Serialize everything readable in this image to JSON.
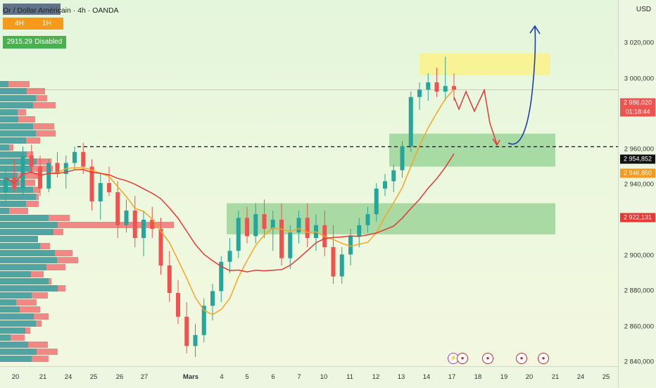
{
  "header": {
    "title": "Or / Dollar Américain · 4h · OANDA",
    "row1_left": "4H",
    "row1_right": "1H",
    "row2_value": "2915.29",
    "row2_status": "Disabled"
  },
  "price_axis": {
    "currency": "USD",
    "ticks": [
      "3 020,000",
      "3 000,000",
      "2 960,000",
      "2 940,000",
      "2 900,000",
      "2 880,000",
      "2 860,000",
      "2 840,000"
    ],
    "labels": {
      "current_price": "2 986,020",
      "countdown": "01:18:44",
      "dashed_level": "2 954,852",
      "ma_fast": "2 946,850",
      "ma_slow": "2 922,131"
    }
  },
  "time_axis": {
    "ticks": [
      "20",
      "21",
      "24",
      "25",
      "26",
      "27",
      "Mars",
      "4",
      "5",
      "6",
      "7",
      "10",
      "11",
      "12",
      "13",
      "14",
      "17",
      "18",
      "19",
      "20",
      "21",
      "24",
      "25"
    ]
  },
  "colors": {
    "up": "#26a69a",
    "down": "#ef5350",
    "ma_fast": "#f5a623",
    "ma_slow": "#e53935",
    "zone_green": "#66bb6a",
    "zone_yellow": "#fff176",
    "projection_red": "#e53935",
    "projection_blue": "#1e40af"
  },
  "events": [
    {
      "icon": "lightning-icon",
      "symbol": "⚡"
    },
    {
      "icon": "us-flag-icon",
      "symbol": "●"
    },
    {
      "icon": "us-flag-icon",
      "symbol": "●"
    },
    {
      "icon": "us-flag-icon",
      "symbol": "●"
    },
    {
      "icon": "us-flag-icon",
      "symbol": "●"
    }
  ],
  "chart_data": {
    "type": "candlestick",
    "instrument": "Or / Dollar Américain",
    "timeframe": "4h",
    "ylim": [
      2835,
      3035
    ],
    "candles": [
      [
        2930,
        2944,
        2925,
        2938
      ],
      [
        2938,
        2948,
        2930,
        2932
      ],
      [
        2932,
        2955,
        2928,
        2950
      ],
      [
        2950,
        2956,
        2940,
        2944
      ],
      [
        2944,
        2950,
        2928,
        2932
      ],
      [
        2932,
        2948,
        2930,
        2946
      ],
      [
        2946,
        2952,
        2938,
        2940
      ],
      [
        2940,
        2950,
        2932,
        2946
      ],
      [
        2946,
        2955,
        2942,
        2952
      ],
      [
        2952,
        2957,
        2940,
        2944
      ],
      [
        2944,
        2948,
        2920,
        2925
      ],
      [
        2925,
        2940,
        2915,
        2935
      ],
      [
        2935,
        2944,
        2928,
        2930
      ],
      [
        2930,
        2936,
        2905,
        2912
      ],
      [
        2912,
        2926,
        2908,
        2920
      ],
      [
        2920,
        2928,
        2900,
        2905
      ],
      [
        2905,
        2920,
        2895,
        2915
      ],
      [
        2915,
        2922,
        2905,
        2910
      ],
      [
        2910,
        2916,
        2885,
        2890
      ],
      [
        2890,
        2898,
        2870,
        2875
      ],
      [
        2875,
        2882,
        2858,
        2862
      ],
      [
        2862,
        2870,
        2842,
        2846
      ],
      [
        2846,
        2858,
        2840,
        2852
      ],
      [
        2852,
        2872,
        2848,
        2868
      ],
      [
        2868,
        2880,
        2860,
        2876
      ],
      [
        2876,
        2895,
        2870,
        2892
      ],
      [
        2892,
        2905,
        2886,
        2898
      ],
      [
        2898,
        2920,
        2894,
        2916
      ],
      [
        2916,
        2922,
        2902,
        2906
      ],
      [
        2906,
        2924,
        2902,
        2918
      ],
      [
        2918,
        2926,
        2905,
        2910
      ],
      [
        2910,
        2920,
        2898,
        2915
      ],
      [
        2915,
        2924,
        2890,
        2894
      ],
      [
        2894,
        2912,
        2888,
        2908
      ],
      [
        2908,
        2920,
        2902,
        2916
      ],
      [
        2916,
        2924,
        2900,
        2905
      ],
      [
        2905,
        2918,
        2898,
        2912
      ],
      [
        2912,
        2920,
        2895,
        2900
      ],
      [
        2900,
        2912,
        2880,
        2884
      ],
      [
        2884,
        2900,
        2880,
        2896
      ],
      [
        2896,
        2910,
        2890,
        2906
      ],
      [
        2906,
        2916,
        2900,
        2912
      ],
      [
        2912,
        2922,
        2908,
        2918
      ],
      [
        2918,
        2935,
        2914,
        2932
      ],
      [
        2932,
        2940,
        2928,
        2936
      ],
      [
        2936,
        2945,
        2930,
        2942
      ],
      [
        2942,
        2958,
        2938,
        2955
      ],
      [
        2955,
        2985,
        2952,
        2982
      ],
      [
        2982,
        2990,
        2975,
        2986
      ],
      [
        2986,
        2995,
        2980,
        2990
      ],
      [
        2990,
        2998,
        2982,
        2985
      ],
      [
        2985,
        3004,
        2980,
        2988
      ],
      [
        2988,
        2995,
        2980,
        2986
      ]
    ],
    "ma_fast_label": "2 946,850",
    "ma_slow_label": "2 922,131",
    "zones": [
      {
        "color": "yellow",
        "from": 2994,
        "to": 3006
      },
      {
        "color": "green",
        "from": 2944,
        "to": 2962
      },
      {
        "color": "green",
        "from": 2907,
        "to": 2924
      }
    ],
    "dashed_level": 2954.852,
    "last_price": 2986.02
  }
}
